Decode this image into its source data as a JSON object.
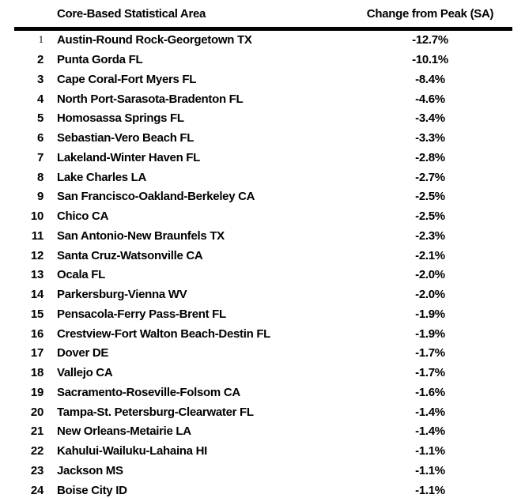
{
  "table": {
    "headers": {
      "area": "Core-Based Statistical Area",
      "change": "Change from Peak (SA)"
    },
    "rows": [
      {
        "rank": "1",
        "name": "Austin-Round Rock-Georgetown TX",
        "change": "-12.7%",
        "rank_light": true
      },
      {
        "rank": "2",
        "name": "Punta Gorda FL",
        "change": "-10.1%"
      },
      {
        "rank": "3",
        "name": "Cape Coral-Fort Myers FL",
        "change": "-8.4%"
      },
      {
        "rank": "4",
        "name": "North Port-Sarasota-Bradenton FL",
        "change": "-4.6%"
      },
      {
        "rank": "5",
        "name": "Homosassa Springs FL",
        "change": "-3.4%"
      },
      {
        "rank": "6",
        "name": "Sebastian-Vero Beach FL",
        "change": "-3.3%"
      },
      {
        "rank": "7",
        "name": "Lakeland-Winter Haven FL",
        "change": "-2.8%"
      },
      {
        "rank": "8",
        "name": "Lake Charles LA",
        "change": "-2.7%"
      },
      {
        "rank": "9",
        "name": "San Francisco-Oakland-Berkeley CA",
        "change": "-2.5%"
      },
      {
        "rank": "10",
        "name": "Chico CA",
        "change": "-2.5%"
      },
      {
        "rank": "11",
        "name": "San Antonio-New Braunfels TX",
        "change": "-2.3%"
      },
      {
        "rank": "12",
        "name": "Santa Cruz-Watsonville CA",
        "change": "-2.1%"
      },
      {
        "rank": "13",
        "name": "Ocala FL",
        "change": "-2.0%"
      },
      {
        "rank": "14",
        "name": "Parkersburg-Vienna WV",
        "change": "-2.0%"
      },
      {
        "rank": "15",
        "name": "Pensacola-Ferry Pass-Brent FL",
        "change": "-1.9%"
      },
      {
        "rank": "16",
        "name": "Crestview-Fort Walton Beach-Destin FL",
        "change": "-1.9%"
      },
      {
        "rank": "17",
        "name": "Dover DE",
        "change": "-1.7%"
      },
      {
        "rank": "18",
        "name": "Vallejo CA",
        "change": "-1.7%"
      },
      {
        "rank": "19",
        "name": "Sacramento-Roseville-Folsom CA",
        "change": "-1.6%"
      },
      {
        "rank": "20",
        "name": "Tampa-St. Petersburg-Clearwater FL",
        "change": "-1.4%"
      },
      {
        "rank": "21",
        "name": "New Orleans-Metairie LA",
        "change": "-1.4%"
      },
      {
        "rank": "22",
        "name": "Kahului-Wailuku-Lahaina HI",
        "change": "-1.1%"
      },
      {
        "rank": "23",
        "name": "Jackson MS",
        "change": "-1.1%"
      },
      {
        "rank": "24",
        "name": "Boise City ID",
        "change": "-1.1%"
      }
    ]
  },
  "colors": {
    "text": "#000000",
    "rule": "#000000",
    "background": "#ffffff"
  },
  "chart_data": {
    "type": "table",
    "title": "",
    "columns": [
      "Rank",
      "Core-Based Statistical Area",
      "Change from Peak (SA)"
    ],
    "categories": [
      "Austin-Round Rock-Georgetown TX",
      "Punta Gorda FL",
      "Cape Coral-Fort Myers FL",
      "North Port-Sarasota-Bradenton FL",
      "Homosassa Springs FL",
      "Sebastian-Vero Beach FL",
      "Lakeland-Winter Haven FL",
      "Lake Charles LA",
      "San Francisco-Oakland-Berkeley CA",
      "Chico CA",
      "San Antonio-New Braunfels TX",
      "Santa Cruz-Watsonville CA",
      "Ocala FL",
      "Parkersburg-Vienna WV",
      "Pensacola-Ferry Pass-Brent FL",
      "Crestview-Fort Walton Beach-Destin FL",
      "Dover DE",
      "Vallejo CA",
      "Sacramento-Roseville-Folsom CA",
      "Tampa-St. Petersburg-Clearwater FL",
      "New Orleans-Metairie LA",
      "Kahului-Wailuku-Lahaina HI",
      "Jackson MS",
      "Boise City ID"
    ],
    "values": [
      -12.7,
      -10.1,
      -8.4,
      -4.6,
      -3.4,
      -3.3,
      -2.8,
      -2.7,
      -2.5,
      -2.5,
      -2.3,
      -2.1,
      -2.0,
      -2.0,
      -1.9,
      -1.9,
      -1.7,
      -1.7,
      -1.6,
      -1.4,
      -1.4,
      -1.1,
      -1.1,
      -1.1
    ],
    "unit": "%",
    "ranks": [
      1,
      2,
      3,
      4,
      5,
      6,
      7,
      8,
      9,
      10,
      11,
      12,
      13,
      14,
      15,
      16,
      17,
      18,
      19,
      20,
      21,
      22,
      23,
      24
    ]
  }
}
